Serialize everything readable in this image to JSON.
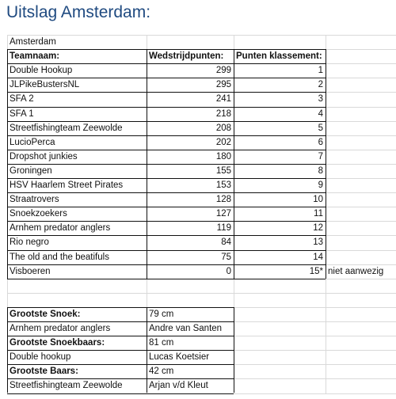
{
  "page_title": "Uitslag Amsterdam:",
  "sheet_title": "Amsterdam",
  "columns": [
    "Teamnaam:",
    "Wedstrijdpunten:",
    "Punten klassement:"
  ],
  "rows": [
    {
      "team": "Double Hookup",
      "points": "299",
      "rank": "1",
      "note": ""
    },
    {
      "team": "JLPikeBustersNL",
      "points": "295",
      "rank": "2",
      "note": ""
    },
    {
      "team": "SFA 2",
      "points": "241",
      "rank": "3",
      "note": ""
    },
    {
      "team": "SFA 1",
      "points": "218",
      "rank": "4",
      "note": ""
    },
    {
      "team": "Streetfishingteam Zeewolde",
      "points": "208",
      "rank": "5",
      "note": ""
    },
    {
      "team": "LucioPerca",
      "points": "202",
      "rank": "6",
      "note": ""
    },
    {
      "team": "Dropshot junkies",
      "points": "180",
      "rank": "7",
      "note": ""
    },
    {
      "team": "Groningen",
      "points": "155",
      "rank": "8",
      "note": ""
    },
    {
      "team": "HSV Haarlem Street Pirates",
      "points": "153",
      "rank": "9",
      "note": ""
    },
    {
      "team": "Straatrovers",
      "points": "128",
      "rank": "10",
      "note": ""
    },
    {
      "team": "Snoekzoekers",
      "points": "127",
      "rank": "11",
      "note": ""
    },
    {
      "team": "Arnhem predator anglers",
      "points": "119",
      "rank": "12",
      "note": ""
    },
    {
      "team": "Rio negro",
      "points": "84",
      "rank": "13",
      "note": ""
    },
    {
      "team": "The old and the beatifuls",
      "points": "75",
      "rank": "14",
      "note": ""
    },
    {
      "team": "Visboeren",
      "points": "0",
      "rank": "15*",
      "note": "niet aanwezig"
    }
  ],
  "prizes": [
    {
      "label": "Grootste Snoek:",
      "value": "79 cm",
      "bold": true
    },
    {
      "label": "Arnhem predator anglers",
      "value": "Andre van Santen",
      "bold": false
    },
    {
      "label": "Grootste Snoekbaars:",
      "value": "81 cm",
      "bold": true
    },
    {
      "label": "Double hookup",
      "value": "Lucas Koetsier",
      "bold": false
    },
    {
      "label": "Grootste Baars:",
      "value": "42 cm",
      "bold": true
    },
    {
      "label": "Streetfishingteam Zeewolde",
      "value": "Arjan v/d Kleut",
      "bold": false
    }
  ]
}
